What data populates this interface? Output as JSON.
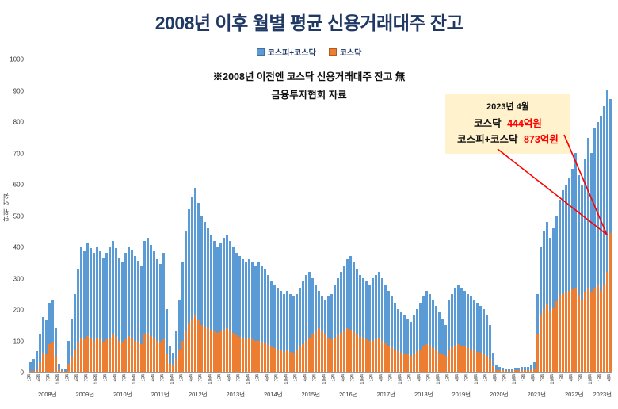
{
  "title": "2008년 이후 월별 평균 신용거래대주 잔고",
  "legend": [
    {
      "label": "코스피+코스닥",
      "color": "#5B9BD5"
    },
    {
      "label": "코스닥",
      "color": "#ED7D31"
    }
  ],
  "notes": {
    "line1": "※2008년 이전엔 코스닥 신용거래대주 잔고 無",
    "line2": "금융투자협회 자료"
  },
  "callout": {
    "date": "2023년 4월",
    "rows": [
      {
        "label": "코스닥",
        "value": "444억원"
      },
      {
        "label": "코스피+코스닥",
        "value": "873억원"
      }
    ],
    "background": "#FFF2CC",
    "value_color": "#FF0000"
  },
  "y_axis": {
    "unit_label": "단위: 억원",
    "ticks": [
      0,
      100,
      200,
      300,
      400,
      500,
      600,
      700,
      800,
      900,
      1000
    ]
  },
  "chart_data": {
    "type": "bar",
    "title": "2008년 이후 월별 평균 신용거래대주 잔고",
    "ylabel": "단위: 억원",
    "ylim": [
      0,
      1000
    ],
    "grid": false,
    "legend_position": "top",
    "x_tick_step": 3,
    "month_tick_labels": [
      "1월",
      "4월",
      "7월",
      "10월"
    ],
    "years": [
      {
        "label": "2008년",
        "months": 12
      },
      {
        "label": "2009년",
        "months": 12
      },
      {
        "label": "2010년",
        "months": 12
      },
      {
        "label": "2011년",
        "months": 12
      },
      {
        "label": "2012년",
        "months": 12
      },
      {
        "label": "2013년",
        "months": 12
      },
      {
        "label": "2014년",
        "months": 12
      },
      {
        "label": "2015년",
        "months": 12
      },
      {
        "label": "2016년",
        "months": 12
      },
      {
        "label": "2017년",
        "months": 12
      },
      {
        "label": "2018년",
        "months": 12
      },
      {
        "label": "2019년",
        "months": 12
      },
      {
        "label": "2020년",
        "months": 12
      },
      {
        "label": "2021년",
        "months": 12
      },
      {
        "label": "2022년",
        "months": 12
      },
      {
        "label": "2023년",
        "months": 4
      }
    ],
    "series": [
      {
        "name": "코스피+코스닥",
        "color": "#5B9BD5",
        "values": [
          30,
          40,
          65,
          120,
          175,
          165,
          220,
          230,
          140,
          25,
          10,
          8,
          100,
          170,
          250,
          330,
          400,
          385,
          410,
          395,
          380,
          400,
          385,
          365,
          380,
          400,
          420,
          395,
          365,
          350,
          380,
          400,
          390,
          370,
          355,
          340,
          420,
          430,
          405,
          385,
          360,
          345,
          380,
          200,
          80,
          60,
          130,
          230,
          350,
          450,
          520,
          560,
          590,
          540,
          500,
          480,
          460,
          440,
          420,
          400,
          410,
          430,
          440,
          420,
          400,
          380,
          370,
          360,
          350,
          360,
          350,
          340,
          350,
          340,
          330,
          310,
          290,
          280,
          270,
          260,
          250,
          260,
          250,
          240,
          250,
          270,
          290,
          310,
          320,
          300,
          280,
          260,
          240,
          230,
          240,
          250,
          280,
          300,
          320,
          340,
          360,
          370,
          350,
          330,
          310,
          300,
          290,
          280,
          300,
          310,
          320,
          300,
          280,
          260,
          240,
          220,
          200,
          190,
          180,
          170,
          160,
          180,
          200,
          220,
          240,
          260,
          250,
          230,
          210,
          190,
          170,
          150,
          230,
          250,
          270,
          280,
          270,
          260,
          250,
          240,
          230,
          220,
          210,
          200,
          180,
          150,
          60,
          20,
          15,
          12,
          10,
          10,
          10,
          12,
          12,
          15,
          15,
          15,
          20,
          30,
          250,
          400,
          450,
          480,
          430,
          460,
          500,
          550,
          580,
          600,
          620,
          650,
          700,
          630,
          600,
          680,
          750,
          700,
          780,
          800,
          820,
          850,
          900,
          873
        ]
      },
      {
        "name": "코스닥",
        "color": "#ED7D31",
        "values": [
          2,
          3,
          6,
          30,
          60,
          55,
          90,
          95,
          50,
          5,
          2,
          1,
          25,
          45,
          70,
          95,
          110,
          105,
          115,
          110,
          100,
          110,
          105,
          95,
          105,
          110,
          120,
          112,
          100,
          95,
          105,
          115,
          110,
          100,
          95,
          90,
          120,
          125,
          115,
          110,
          100,
          95,
          105,
          55,
          25,
          20,
          40,
          70,
          100,
          130,
          155,
          170,
          180,
          165,
          150,
          145,
          140,
          135,
          130,
          125,
          130,
          135,
          140,
          132,
          125,
          118,
          112,
          108,
          104,
          108,
          104,
          100,
          100,
          96,
          92,
          86,
          80,
          76,
          72,
          68,
          64,
          68,
          64,
          60,
          70,
          80,
          90,
          100,
          110,
          120,
          130,
          140,
          130,
          120,
          110,
          105,
          110,
          118,
          125,
          132,
          140,
          135,
          128,
          120,
          112,
          108,
          104,
          100,
          100,
          104,
          108,
          100,
          92,
          85,
          78,
          72,
          66,
          62,
          58,
          55,
          52,
          58,
          65,
          72,
          80,
          88,
          84,
          76,
          68,
          62,
          56,
          50,
          70,
          78,
          85,
          88,
          84,
          80,
          76,
          72,
          68,
          64,
          60,
          56,
          50,
          40,
          18,
          6,
          5,
          4,
          3,
          3,
          3,
          4,
          4,
          5,
          5,
          5,
          6,
          10,
          120,
          180,
          200,
          215,
          195,
          205,
          225,
          245,
          250,
          255,
          260,
          265,
          270,
          245,
          230,
          255,
          270,
          255,
          270,
          280,
          260,
          280,
          320,
          444
        ]
      }
    ]
  }
}
